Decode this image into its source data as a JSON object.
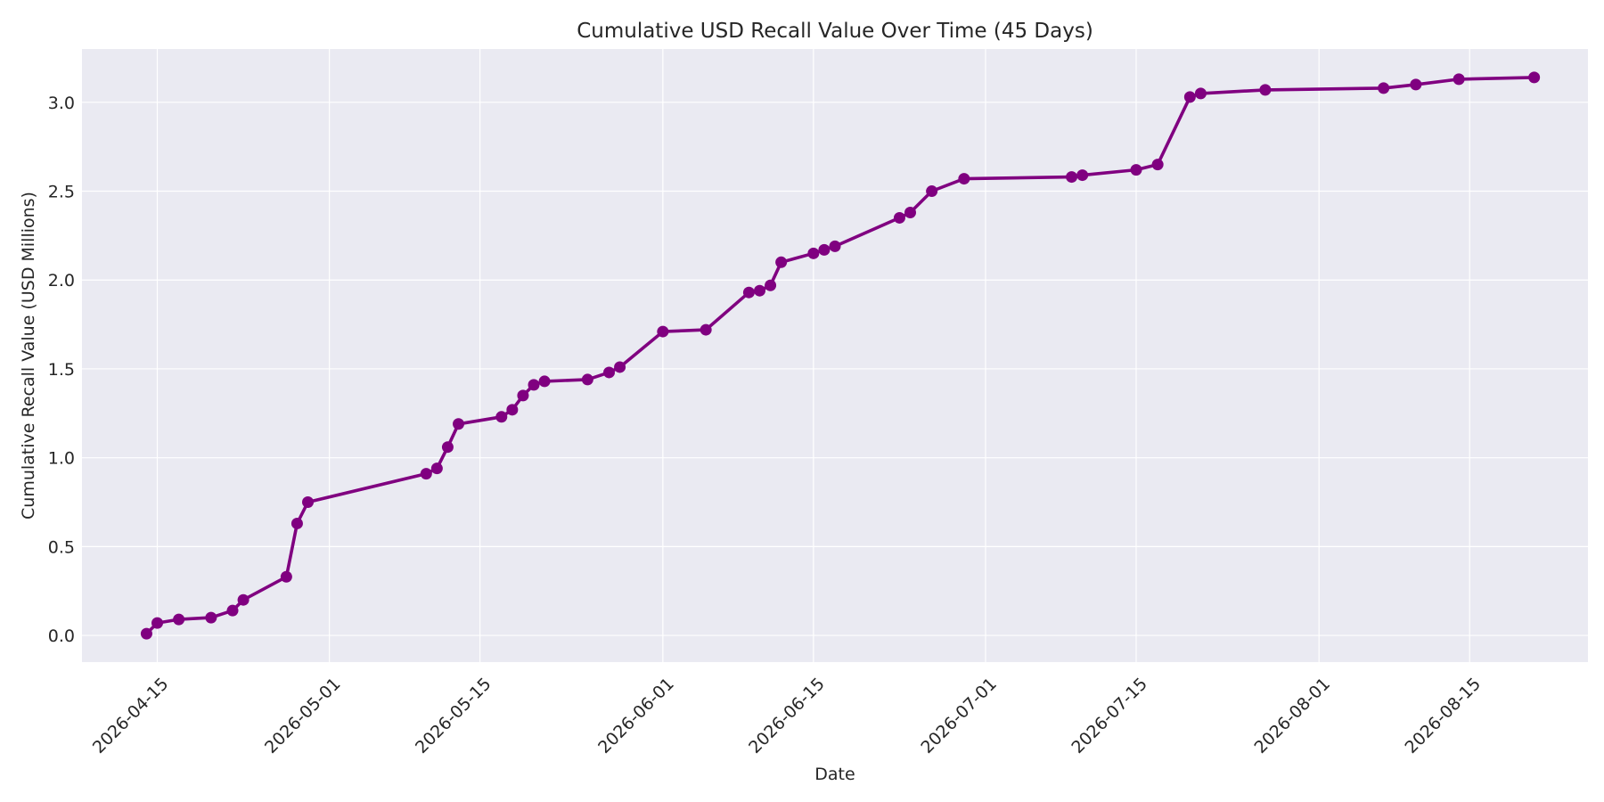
{
  "chart_data": {
    "type": "line",
    "title": "Cumulative USD Recall Value Over Time (45 Days)",
    "xlabel": "Date",
    "ylabel": "Cumulative Recall Value (USD Millions)",
    "xlim": [
      "2026-04-08",
      "2026-08-26"
    ],
    "ylim": [
      -0.15,
      3.3
    ],
    "x_ticks": [
      "2026-04-15",
      "2026-05-01",
      "2026-05-15",
      "2026-06-01",
      "2026-06-15",
      "2026-07-01",
      "2026-07-15",
      "2026-08-01",
      "2026-08-15"
    ],
    "y_ticks": [
      0.0,
      0.5,
      1.0,
      1.5,
      2.0,
      2.5,
      3.0
    ],
    "y_tick_labels": [
      "0.0",
      "0.5",
      "1.0",
      "1.5",
      "2.0",
      "2.5",
      "3.0"
    ],
    "grid": true,
    "background_color": "#eaeaf2",
    "series": [
      {
        "color": "#800080",
        "x": [
          "2026-04-14",
          "2026-04-15",
          "2026-04-17",
          "2026-04-20",
          "2026-04-22",
          "2026-04-23",
          "2026-04-27",
          "2026-04-28",
          "2026-04-29",
          "2026-05-10",
          "2026-05-11",
          "2026-05-12",
          "2026-05-13",
          "2026-05-17",
          "2026-05-18",
          "2026-05-19",
          "2026-05-20",
          "2026-05-21",
          "2026-05-25",
          "2026-05-27",
          "2026-05-28",
          "2026-06-01",
          "2026-06-05",
          "2026-06-09",
          "2026-06-10",
          "2026-06-11",
          "2026-06-12",
          "2026-06-15",
          "2026-06-16",
          "2026-06-17",
          "2026-06-23",
          "2026-06-24",
          "2026-06-26",
          "2026-06-29",
          "2026-07-09",
          "2026-07-10",
          "2026-07-15",
          "2026-07-17",
          "2026-07-20",
          "2026-07-21",
          "2026-07-27",
          "2026-08-07",
          "2026-08-10",
          "2026-08-14",
          "2026-08-21"
        ],
        "y": [
          0.01,
          0.07,
          0.09,
          0.1,
          0.14,
          0.2,
          0.33,
          0.63,
          0.75,
          0.91,
          0.94,
          1.06,
          1.19,
          1.23,
          1.27,
          1.35,
          1.41,
          1.43,
          1.44,
          1.48,
          1.51,
          1.71,
          1.72,
          1.93,
          1.94,
          1.97,
          2.1,
          2.15,
          2.17,
          2.19,
          2.35,
          2.38,
          2.5,
          2.57,
          2.58,
          2.59,
          2.62,
          2.65,
          3.03,
          3.05,
          3.07,
          3.08,
          3.1,
          3.13,
          3.14
        ]
      }
    ]
  }
}
